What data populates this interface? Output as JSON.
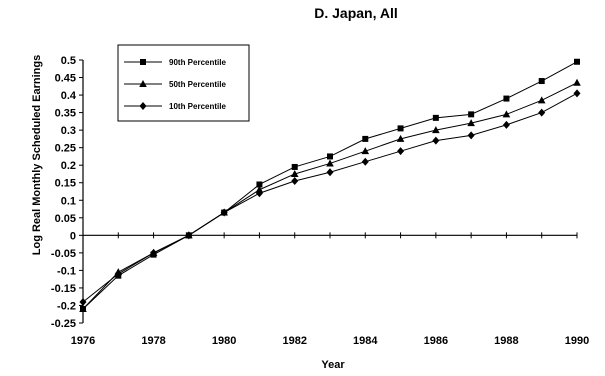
{
  "chart_data": {
    "type": "line",
    "title": "D. Japan, All",
    "xlabel": "Year",
    "ylabel": "Log Real Monthly Scheduled Earnings",
    "xlim": [
      1976,
      1990
    ],
    "ylim": [
      -0.25,
      0.5
    ],
    "x": [
      1976,
      1977,
      1978,
      1979,
      1980,
      1981,
      1982,
      1983,
      1984,
      1985,
      1986,
      1987,
      1988,
      1989,
      1990
    ],
    "x_ticks": [
      "1976",
      "1978",
      "1980",
      "1982",
      "1984",
      "1986",
      "1988",
      "1990"
    ],
    "y_ticks": [
      "0.5",
      "0.45",
      "0.4",
      "0.35",
      "0.3",
      "0.25",
      "0.2",
      "0.15",
      "0.1",
      "0.05",
      "0",
      "-0.05",
      "-0.1",
      "-0.15",
      "-0.2",
      "-0.25"
    ],
    "grid": false,
    "legend_position": "top-left",
    "series": [
      {
        "name": "90th Percentile",
        "marker": "square",
        "values": [
          -0.21,
          -0.115,
          -0.055,
          0.0,
          0.065,
          0.145,
          0.195,
          0.225,
          0.275,
          0.305,
          0.335,
          0.345,
          0.39,
          0.44,
          0.495
        ]
      },
      {
        "name": "50th Percentile",
        "marker": "triangle",
        "values": [
          -0.21,
          -0.105,
          -0.05,
          0.0,
          0.065,
          0.13,
          0.175,
          0.205,
          0.24,
          0.275,
          0.3,
          0.32,
          0.345,
          0.385,
          0.435
        ]
      },
      {
        "name": "10th Percentile",
        "marker": "diamond",
        "values": [
          -0.19,
          -0.11,
          -0.05,
          0.0,
          0.065,
          0.12,
          0.155,
          0.18,
          0.21,
          0.24,
          0.27,
          0.285,
          0.315,
          0.35,
          0.405
        ]
      }
    ]
  }
}
